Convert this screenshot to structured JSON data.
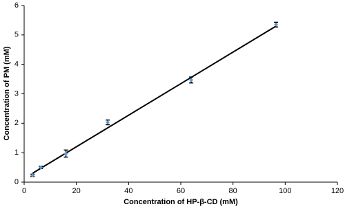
{
  "chart_data": {
    "type": "scatter",
    "xlabel": "Concentration of HP-β-CD (mM)",
    "ylabel": "Concentration of PM (mM)",
    "series": [
      {
        "x": [
          3.2,
          6.4,
          16,
          32,
          64,
          96.5
        ],
        "values": [
          0.23,
          0.5,
          0.97,
          2.03,
          3.47,
          5.35
        ],
        "errors": [
          0.04,
          0.04,
          0.12,
          0.08,
          0.1,
          0.08
        ],
        "color": "#5b9bd5",
        "error_color": "#000000"
      }
    ],
    "trendline": {
      "x": [
        3.2,
        96.5
      ],
      "values": [
        0.3,
        5.3
      ],
      "color": "#000000"
    },
    "xlim": [
      0,
      120
    ],
    "xticks": [
      0,
      20,
      40,
      60,
      80,
      100,
      120
    ],
    "ylim": [
      0,
      6
    ],
    "yticks": [
      0,
      1,
      2,
      3,
      4,
      5,
      6
    ]
  }
}
